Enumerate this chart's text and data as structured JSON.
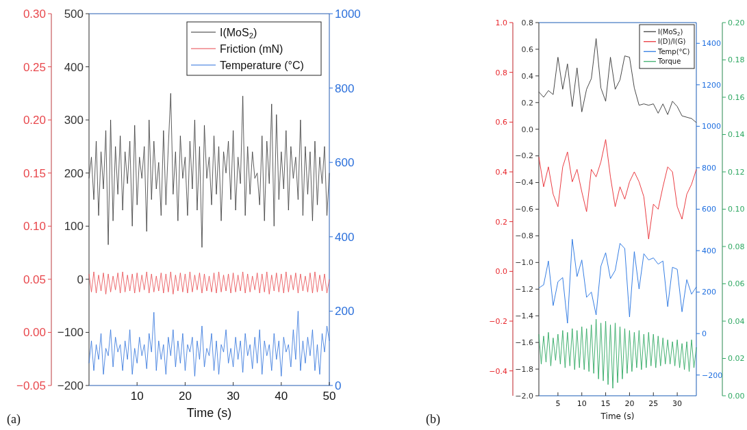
{
  "chart_data": [
    {
      "type": "line",
      "xlabel": "Time (s)",
      "annotations": [
        "(a)"
      ],
      "legend": "top right",
      "xlim": [
        0,
        50
      ],
      "xticks": [
        10,
        20,
        30,
        40,
        50
      ],
      "ylim": [
        -200,
        500
      ],
      "yticks": [
        {
          "value": -200,
          "label": "−200"
        },
        {
          "value": -100,
          "label": "−100"
        },
        0,
        100,
        200,
        300,
        400,
        500
      ],
      "y2lim": [
        0,
        1000
      ],
      "y2ticks": [
        0,
        200,
        400,
        600,
        800,
        1000
      ],
      "y3lim": [
        -0.05,
        0.3
      ],
      "y3ticks": [
        {
          "value": -0.05,
          "label": "−0.05"
        },
        {
          "value": 0,
          "label": "0.00"
        },
        0.05,
        {
          "value": 0.1,
          "label": "0.10"
        },
        0.15,
        {
          "value": 0.2,
          "label": "0.20"
        },
        0.25,
        {
          "value": 0.3,
          "label": "0.30"
        }
      ],
      "x": [
        0,
        0.5,
        1,
        1.5,
        2,
        2.5,
        3,
        3.5,
        4,
        4.5,
        5,
        5.5,
        6,
        6.5,
        7,
        7.5,
        8,
        8.5,
        9,
        9.5,
        10,
        10.5,
        11,
        11.5,
        12,
        12.5,
        13,
        13.5,
        14,
        14.5,
        15,
        15.5,
        16,
        16.5,
        17,
        17.5,
        18,
        18.5,
        19,
        19.5,
        20,
        20.5,
        21,
        21.5,
        22,
        22.5,
        23,
        23.5,
        24,
        24.5,
        25,
        25.5,
        26,
        26.5,
        27,
        27.5,
        28,
        28.5,
        29,
        29.5,
        30,
        30.5,
        31,
        31.5,
        32,
        32.5,
        33,
        33.5,
        34,
        34.5,
        35,
        35.5,
        36,
        36.5,
        37,
        37.5,
        38,
        38.5,
        39,
        39.5,
        40,
        40.5,
        41,
        41.5,
        42,
        42.5,
        43,
        43.5,
        44,
        44.5,
        45,
        45.5,
        46,
        46.5,
        47,
        47.5,
        48,
        48.5,
        49,
        49.5,
        50
      ],
      "series": [
        {
          "name": "I(MoS$_{2}$)",
          "color": "#333333",
          "axis": "y",
          "values": [
            190,
            230,
            150,
            260,
            120,
            240,
            170,
            280,
            65,
            300,
            110,
            250,
            160,
            270,
            130,
            240,
            180,
            260,
            100,
            290,
            140,
            230,
            190,
            250,
            90,
            300,
            150,
            260,
            170,
            220,
            120,
            280,
            140,
            250,
            350,
            160,
            240,
            110,
            270,
            190,
            230,
            120,
            260,
            170,
            300,
            130,
            250,
            60,
            290,
            190,
            230,
            140,
            270,
            160,
            250,
            110,
            240,
            200,
            260,
            150,
            280,
            130,
            230,
            180,
            345,
            120,
            250,
            160,
            240,
            190,
            200,
            140,
            270,
            110,
            260,
            180,
            330,
            100,
            310,
            150,
            240,
            170,
            280,
            130,
            250,
            190,
            230,
            150,
            300,
            120,
            250,
            160,
            240,
            110,
            260,
            140,
            230,
            180,
            250,
            120,
            200
          ]
        },
        {
          "name": "Friction (mN)",
          "color": "#e8474c",
          "axis": "y3",
          "values": [
            0.055,
            0.038,
            0.057,
            0.037,
            0.054,
            0.039,
            0.056,
            0.036,
            0.055,
            0.038,
            0.053,
            0.04,
            0.056,
            0.037,
            0.057,
            0.038,
            0.054,
            0.039,
            0.055,
            0.037,
            0.056,
            0.038,
            0.054,
            0.04,
            0.057,
            0.037,
            0.055,
            0.038,
            0.053,
            0.039,
            0.056,
            0.037,
            0.055,
            0.038,
            0.057,
            0.036,
            0.054,
            0.039,
            0.056,
            0.038,
            0.055,
            0.037,
            0.057,
            0.038,
            0.054,
            0.04,
            0.056,
            0.037,
            0.055,
            0.039,
            0.053,
            0.038,
            0.056,
            0.037,
            0.057,
            0.038,
            0.054,
            0.039,
            0.055,
            0.037,
            0.056,
            0.038,
            0.054,
            0.039,
            0.057,
            0.037,
            0.055,
            0.038,
            0.053,
            0.04,
            0.056,
            0.037,
            0.055,
            0.038,
            0.057,
            0.036,
            0.054,
            0.039,
            0.056,
            0.038,
            0.055,
            0.037,
            0.057,
            0.038,
            0.054,
            0.04,
            0.056,
            0.037,
            0.055,
            0.039,
            0.053,
            0.038,
            0.056,
            0.037,
            0.057,
            0.038,
            0.054,
            0.039,
            0.055,
            0.037,
            0.05
          ]
        },
        {
          "name": "Temperature (°C)",
          "color": "#2a6fdb",
          "axis": "y2",
          "values": [
            60,
            120,
            40,
            110,
            70,
            140,
            30,
            100,
            80,
            150,
            50,
            130,
            90,
            110,
            40,
            120,
            70,
            150,
            30,
            100,
            60,
            130,
            80,
            110,
            45,
            140,
            90,
            197,
            40,
            120,
            70,
            110,
            30,
            130,
            80,
            150,
            50,
            120,
            60,
            140,
            40,
            110,
            90,
            130,
            25,
            120,
            70,
            160,
            50,
            100,
            80,
            140,
            40,
            120,
            30,
            110,
            90,
            150,
            60,
            100,
            50,
            130,
            70,
            120,
            35,
            140,
            80,
            110,
            45,
            130,
            60,
            150,
            30,
            120,
            80,
            110,
            40,
            140,
            70,
            120,
            25,
            130,
            90,
            110,
            50,
            150,
            70,
            200,
            40,
            120,
            60,
            130,
            80,
            150,
            40,
            110,
            30,
            140,
            90,
            160,
            120
          ]
        }
      ]
    },
    {
      "type": "line",
      "xlabel": "Time (s)",
      "annotations": [
        "(b)"
      ],
      "legend": "top right",
      "xlim": [
        1,
        34
      ],
      "xticks": [
        5,
        10,
        15,
        20,
        25,
        30
      ],
      "ylim": [
        -2.0,
        0.8
      ],
      "yticks": [
        {
          "value": -2.0,
          "label": "−2.0"
        },
        {
          "value": -1.8,
          "label": "−1.8"
        },
        {
          "value": -1.6,
          "label": "−1.6"
        },
        {
          "value": -1.4,
          "label": "−1.4"
        },
        {
          "value": -1.2,
          "label": "−1.2"
        },
        {
          "value": -1.0,
          "label": "−1.0"
        },
        {
          "value": -0.8,
          "label": "−0.8"
        },
        {
          "value": -0.6,
          "label": "−0.6"
        },
        {
          "value": -0.4,
          "label": "−0.4"
        },
        {
          "value": -0.2,
          "label": "−0.2"
        },
        {
          "value": 0,
          "label": "0.0"
        },
        0.2,
        0.4,
        0.6,
        0.8
      ],
      "y2lim": [
        -300,
        1500
      ],
      "y2ticks": [
        {
          "value": -200,
          "label": "−200"
        },
        0,
        200,
        400,
        600,
        800,
        1000,
        1200,
        1400
      ],
      "y3lim": [
        -0.5,
        1.0
      ],
      "y3ticks": [
        {
          "value": -0.4,
          "label": "−0.4"
        },
        {
          "value": -0.2,
          "label": "−0.2"
        },
        {
          "value": 0,
          "label": "0.0"
        },
        0.2,
        0.4,
        0.6,
        0.8,
        {
          "value": 1.0,
          "label": "1.0"
        }
      ],
      "x": [
        1,
        2,
        3,
        4,
        5,
        6,
        7,
        8,
        9,
        10,
        11,
        12,
        13,
        14,
        15,
        16,
        17,
        18,
        19,
        20,
        21,
        22,
        23,
        24,
        25,
        26,
        27,
        28,
        29,
        30,
        31,
        32,
        33,
        34
      ],
      "series": [
        {
          "name": "I(MoS$_{2}$)",
          "color": "#333333",
          "axis": "y",
          "values": [
            0.28,
            0.24,
            0.29,
            0.26,
            0.54,
            0.3,
            0.49,
            0.17,
            0.46,
            0.13,
            0.3,
            0.38,
            0.68,
            0.31,
            0.21,
            0.54,
            0.3,
            0.37,
            0.55,
            0.54,
            0.31,
            0.18,
            0.19,
            0.18,
            0.19,
            0.12,
            0.19,
            0.11,
            0.21,
            0.17,
            0.1,
            0.09,
            0.08,
            0.05
          ]
        },
        {
          "name": "I(D)/I(G)",
          "color": "#e8262c",
          "axis": "y3",
          "values": [
            0.46,
            0.34,
            0.42,
            0.31,
            0.26,
            0.42,
            0.48,
            0.36,
            0.41,
            0.32,
            0.24,
            0.41,
            0.38,
            0.44,
            0.53,
            0.38,
            0.26,
            0.34,
            0.29,
            0.36,
            0.4,
            0.36,
            0.3,
            0.13,
            0.27,
            0.25,
            0.34,
            0.42,
            0.4,
            0.26,
            0.21,
            0.31,
            0.35,
            0.41
          ]
        },
        {
          "name": "Temp(°C)",
          "color": "#1f6fe0",
          "axis": "y2",
          "values": [
            220,
            235,
            350,
            135,
            250,
            270,
            50,
            455,
            275,
            355,
            175,
            200,
            90,
            325,
            390,
            265,
            305,
            435,
            410,
            80,
            395,
            215,
            385,
            355,
            365,
            335,
            350,
            130,
            320,
            310,
            105,
            260,
            190,
            225
          ]
        }
      ]
    },
    {
      "type": "line",
      "tick_labels": "y",
      "xlim": [
        1,
        34
      ],
      "ylim": [
        0,
        0.2
      ],
      "yticks": [
        {
          "value": 0,
          "label": "0.00"
        },
        0.02,
        0.04,
        0.06,
        0.08,
        {
          "value": 0.1,
          "label": "0.10"
        },
        0.12,
        0.14,
        0.16,
        0.18,
        {
          "value": 0.2,
          "label": "0.20"
        }
      ],
      "series": [
        {
          "name": "Torque",
          "color": "#2fa862",
          "x": [
            1,
            1.5,
            2,
            2.5,
            3,
            3.5,
            4,
            4.5,
            5,
            5.5,
            6,
            6.5,
            7,
            7.5,
            8,
            8.5,
            9,
            9.5,
            10,
            10.5,
            11,
            11.5,
            12,
            12.5,
            13,
            13.5,
            14,
            14.5,
            15,
            15.5,
            16,
            16.5,
            17,
            17.5,
            18,
            18.5,
            19,
            19.5,
            20,
            20.5,
            21,
            21.5,
            22,
            22.5,
            23,
            23.5,
            24,
            24.5,
            25,
            25.5,
            26,
            26.5,
            27,
            27.5,
            28,
            28.5,
            29,
            29.5,
            30,
            30.5,
            31,
            31.5,
            32,
            32.5,
            33,
            33.5,
            34
          ],
          "values": [
            0.033,
            0.017,
            0.032,
            0.018,
            0.034,
            0.016,
            0.031,
            0.019,
            0.033,
            0.017,
            0.035,
            0.015,
            0.034,
            0.016,
            0.036,
            0.014,
            0.035,
            0.015,
            0.037,
            0.014,
            0.036,
            0.013,
            0.038,
            0.012,
            0.041,
            0.009,
            0.039,
            0.008,
            0.04,
            0.006,
            0.038,
            0.004,
            0.039,
            0.007,
            0.037,
            0.009,
            0.036,
            0.012,
            0.035,
            0.013,
            0.034,
            0.015,
            0.035,
            0.014,
            0.033,
            0.015,
            0.034,
            0.016,
            0.033,
            0.015,
            0.032,
            0.016,
            0.031,
            0.017,
            0.03,
            0.017,
            0.029,
            0.016,
            0.03,
            0.015,
            0.028,
            0.014,
            0.029,
            0.013,
            0.03,
            0.015,
            0.026
          ]
        }
      ]
    }
  ]
}
